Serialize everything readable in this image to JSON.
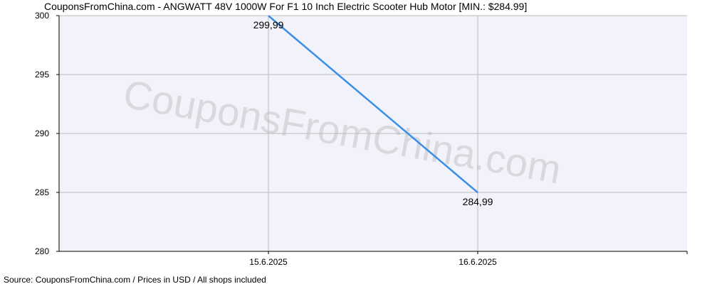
{
  "chart_data": {
    "type": "line",
    "title": "CouponsFromChina.com - ANGWATT 48V 1000W For F1 10 Inch Electric Scooter Hub Motor [MIN.: $284.99]",
    "watermark": "CouponsFromChina.com",
    "source": "Source: CouponsFromChina.com / Prices in USD / All shops included",
    "categories": [
      "15.6.2025",
      "16.6.2025"
    ],
    "series": [
      {
        "name": "Price",
        "color": "#3b8ee8",
        "values": [
          299.99,
          284.99
        ],
        "value_labels": [
          "299,99",
          "284,99"
        ]
      }
    ],
    "ylim": [
      280,
      300
    ],
    "yticks": [
      280,
      285,
      290,
      295,
      300
    ],
    "grid": true
  }
}
